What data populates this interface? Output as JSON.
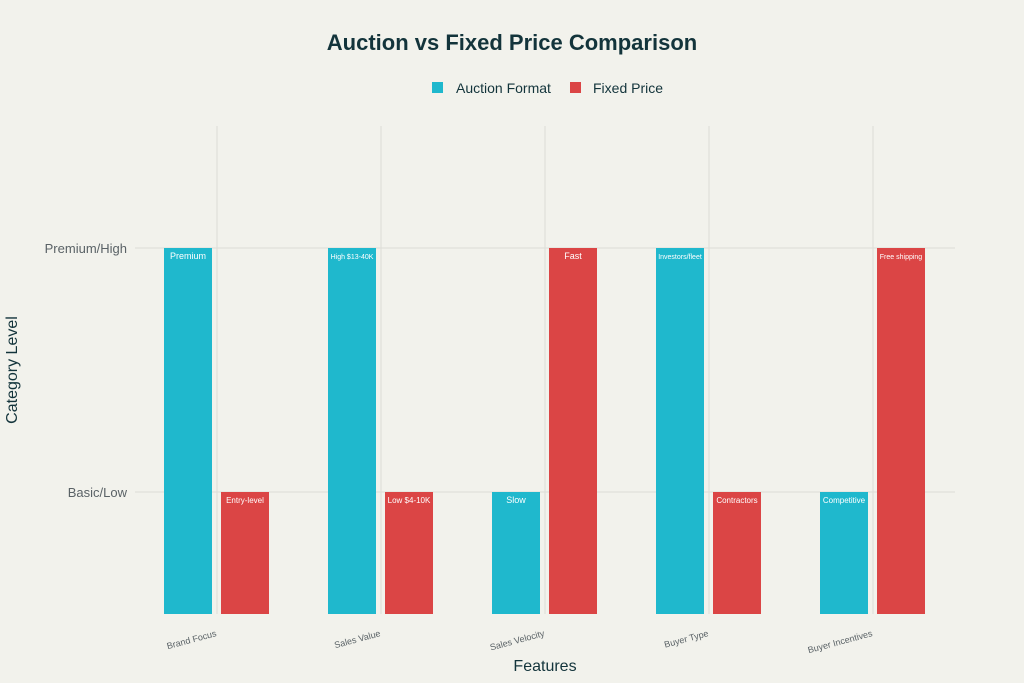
{
  "chart_data": {
    "type": "bar",
    "title": "Auction vs Fixed Price Comparison",
    "xlabel": "Features",
    "ylabel": "Category Level",
    "categories": [
      "Brand Focus",
      "Sales Value",
      "Sales Velocity",
      "Buyer Type",
      "Buyer Incentives"
    ],
    "ytick_values": [
      1,
      2
    ],
    "ytick_labels": [
      "Basic/Low",
      "Premium/High"
    ],
    "ylim": [
      0.5,
      2.5
    ],
    "grid": true,
    "legend_position": "top-center",
    "series": [
      {
        "name": "Auction Format",
        "color": "#1fb8cd",
        "values": [
          2,
          2,
          1,
          2,
          1
        ],
        "labels": [
          "Premium",
          "High $13-40K",
          "Slow",
          "Investors/fleet",
          "Competitive"
        ]
      },
      {
        "name": "Fixed Price",
        "color": "#db4545",
        "values": [
          1,
          1,
          2,
          1,
          2
        ],
        "labels": [
          "Entry-level",
          "Low $4-10K",
          "Fast",
          "Contractors",
          "Free shipping"
        ]
      }
    ]
  }
}
